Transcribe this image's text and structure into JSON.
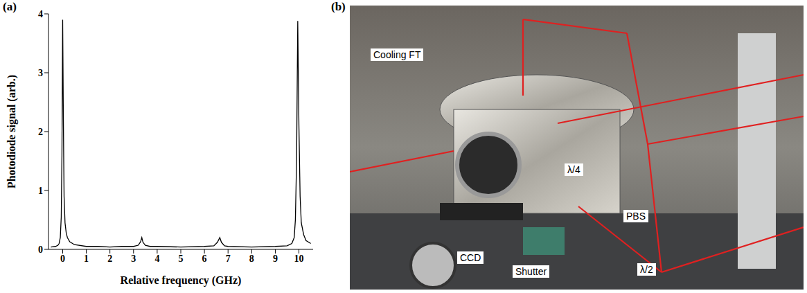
{
  "chart_data": {
    "type": "line",
    "panel": "(a)",
    "x_label": "Relative frequency (GHz)",
    "y_label": "Photodiode signal (arb.)",
    "x": [
      -0.5,
      -0.3,
      -0.2,
      -0.15,
      -0.1,
      -0.06,
      -0.03,
      0,
      0.03,
      0.06,
      0.1,
      0.15,
      0.2,
      0.3,
      0.5,
      1,
      1.5,
      2,
      2.5,
      3,
      3.2,
      3.3,
      3.35,
      3.4,
      3.5,
      3.7,
      4,
      5,
      6,
      6.4,
      6.55,
      6.65,
      6.72,
      6.85,
      7,
      8,
      9,
      9.5,
      9.7,
      9.8,
      9.85,
      9.9,
      9.95,
      10,
      10.05,
      10.1,
      10.2,
      10.3,
      10.5
    ],
    "values": [
      0.04,
      0.05,
      0.07,
      0.1,
      0.2,
      0.55,
      1.6,
      3.9,
      2.2,
      0.9,
      0.45,
      0.28,
      0.2,
      0.13,
      0.08,
      0.05,
      0.05,
      0.04,
      0.05,
      0.05,
      0.07,
      0.13,
      0.2,
      0.12,
      0.07,
      0.05,
      0.05,
      0.04,
      0.05,
      0.06,
      0.12,
      0.2,
      0.12,
      0.06,
      0.05,
      0.04,
      0.05,
      0.06,
      0.1,
      0.2,
      0.5,
      1.5,
      3.88,
      2.1,
      0.9,
      0.45,
      0.25,
      0.15,
      0.1
    ],
    "color": "#000000",
    "xlim": [
      -0.6,
      10.6
    ],
    "xticks": [
      0,
      1,
      2,
      3,
      4,
      5,
      6,
      7,
      8,
      9,
      10
    ],
    "ylim": [
      0,
      4
    ],
    "yticks": [
      0,
      1,
      2,
      3,
      4
    ],
    "grid": false
  },
  "photo": {
    "panel": "(b)",
    "labels": [
      "Cooling FT",
      "λ/4",
      "PBS",
      "λ/2",
      "Shutter",
      "CCD"
    ]
  }
}
